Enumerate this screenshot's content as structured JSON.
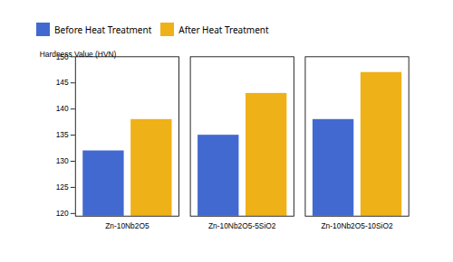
{
  "chart_data": {
    "type": "bar",
    "categories": [
      "Zn-10Nb2O5",
      "Zn-10Nb2O5-5SiO2",
      "Zn-10Nb2O5-10SiO2"
    ],
    "series": [
      {
        "name": "Before Heat Treatment",
        "values": [
          132,
          135,
          138
        ]
      },
      {
        "name": "After Heat Treatment",
        "values": [
          138,
          143,
          147
        ]
      }
    ],
    "ylabel": "Hardness Value (HVN)",
    "ylim": [
      119.5,
      150
    ],
    "yticks": [
      120,
      125,
      130,
      135,
      140,
      145,
      150
    ],
    "grid": false,
    "legend": "upper left"
  }
}
